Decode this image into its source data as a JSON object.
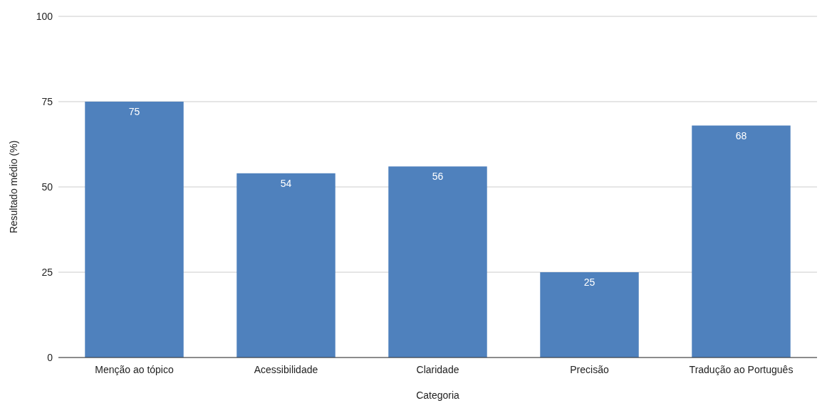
{
  "chart_data": {
    "type": "bar",
    "xlabel": "Categoria",
    "ylabel": "Resultado médio (%)",
    "categories": [
      "Menção ao tópico",
      "Acessibilidade",
      "Claridade",
      "Precisão",
      "Tradução ao Português"
    ],
    "values": [
      75,
      54,
      56,
      25,
      68
    ],
    "color": "#4f81bd",
    "ylim": [
      0,
      100
    ],
    "yticks": [
      0,
      25,
      50,
      75,
      100
    ],
    "grid": "y",
    "data_labels": true
  }
}
